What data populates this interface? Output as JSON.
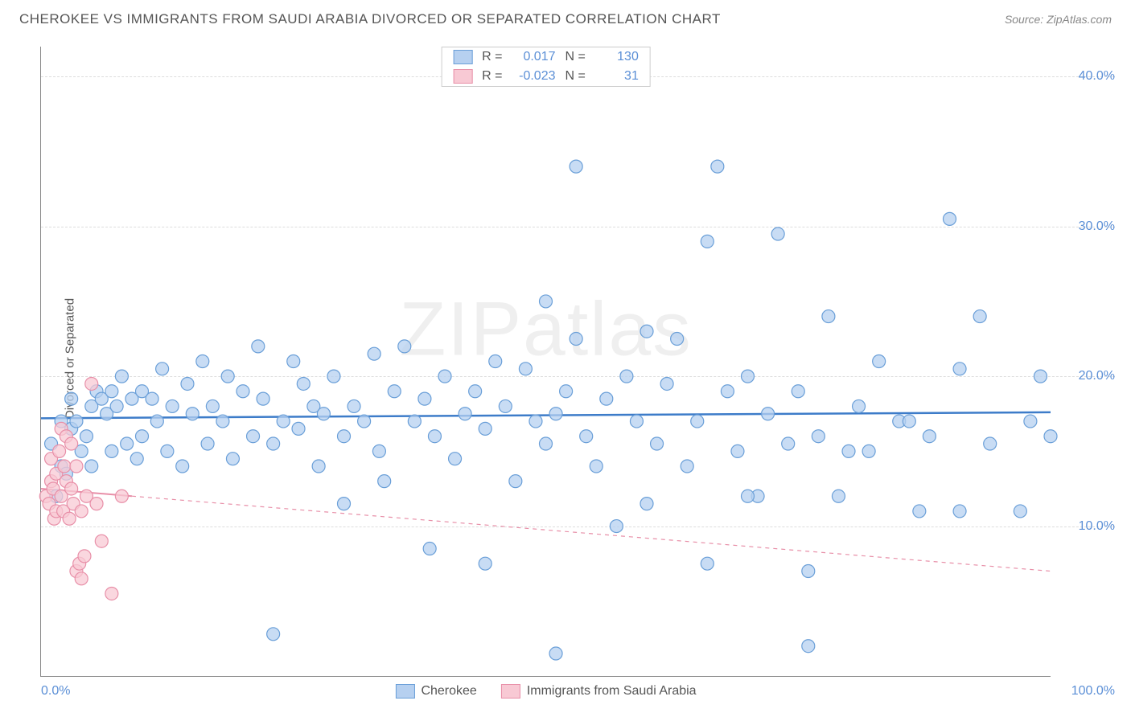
{
  "header": {
    "title": "CHEROKEE VS IMMIGRANTS FROM SAUDI ARABIA DIVORCED OR SEPARATED CORRELATION CHART",
    "source": "Source: ZipAtlas.com"
  },
  "chart": {
    "type": "scatter",
    "ylabel": "Divorced or Separated",
    "watermark": "ZIPatlas",
    "xlim": [
      0,
      100
    ],
    "ylim": [
      0,
      42
    ],
    "yticks": [
      10,
      20,
      30,
      40
    ],
    "ytick_labels": [
      "10.0%",
      "20.0%",
      "30.0%",
      "40.0%"
    ],
    "xtick_left": "0.0%",
    "xtick_right": "100.0%",
    "background": "#ffffff",
    "grid_color": "#dddddd",
    "series": [
      {
        "name": "Cherokee",
        "label": "Cherokee",
        "marker_fill": "#b6d0f0",
        "marker_stroke": "#6a9fd8",
        "marker_radius": 8,
        "marker_opacity": 0.75,
        "line_color": "#3d7cc9",
        "line_width": 2.5,
        "line_dash": "none",
        "trend": {
          "y_at_x0": 17.2,
          "y_at_x100": 17.6
        },
        "R": "0.017",
        "N": "130",
        "points": [
          [
            1,
            15.5
          ],
          [
            1.5,
            12
          ],
          [
            2,
            14
          ],
          [
            2,
            17
          ],
          [
            2.5,
            13.5
          ],
          [
            3,
            16.5
          ],
          [
            3,
            18.5
          ],
          [
            3.5,
            17
          ],
          [
            4,
            15
          ],
          [
            4.5,
            16
          ],
          [
            5,
            18
          ],
          [
            5,
            14
          ],
          [
            5.5,
            19
          ],
          [
            6,
            18.5
          ],
          [
            6.5,
            17.5
          ],
          [
            7,
            19
          ],
          [
            7,
            15
          ],
          [
            7.5,
            18
          ],
          [
            8,
            20
          ],
          [
            8.5,
            15.5
          ],
          [
            9,
            18.5
          ],
          [
            9.5,
            14.5
          ],
          [
            10,
            19
          ],
          [
            10,
            16
          ],
          [
            11,
            18.5
          ],
          [
            11.5,
            17
          ],
          [
            12,
            20.5
          ],
          [
            12.5,
            15
          ],
          [
            13,
            18
          ],
          [
            14,
            14
          ],
          [
            14.5,
            19.5
          ],
          [
            15,
            17.5
          ],
          [
            16,
            21
          ],
          [
            16.5,
            15.5
          ],
          [
            17,
            18
          ],
          [
            18,
            17
          ],
          [
            18.5,
            20
          ],
          [
            19,
            14.5
          ],
          [
            20,
            19
          ],
          [
            21,
            16
          ],
          [
            21.5,
            22
          ],
          [
            22,
            18.5
          ],
          [
            23,
            2.8
          ],
          [
            23,
            15.5
          ],
          [
            24,
            17
          ],
          [
            25,
            21
          ],
          [
            25.5,
            16.5
          ],
          [
            26,
            19.5
          ],
          [
            27,
            18
          ],
          [
            27.5,
            14
          ],
          [
            28,
            17.5
          ],
          [
            29,
            20
          ],
          [
            30,
            11.5
          ],
          [
            30,
            16
          ],
          [
            31,
            18
          ],
          [
            32,
            17
          ],
          [
            33,
            21.5
          ],
          [
            33.5,
            15
          ],
          [
            34,
            13
          ],
          [
            35,
            19
          ],
          [
            36,
            22
          ],
          [
            37,
            17
          ],
          [
            38,
            18.5
          ],
          [
            38.5,
            8.5
          ],
          [
            39,
            16
          ],
          [
            40,
            20
          ],
          [
            41,
            14.5
          ],
          [
            42,
            17.5
          ],
          [
            43,
            19
          ],
          [
            44,
            7.5
          ],
          [
            44,
            16.5
          ],
          [
            45,
            21
          ],
          [
            46,
            18
          ],
          [
            47,
            13
          ],
          [
            48,
            20.5
          ],
          [
            49,
            17
          ],
          [
            50,
            25
          ],
          [
            50,
            15.5
          ],
          [
            51,
            1.5
          ],
          [
            51,
            17.5
          ],
          [
            52,
            19
          ],
          [
            53,
            34
          ],
          [
            53,
            22.5
          ],
          [
            54,
            16
          ],
          [
            55,
            14
          ],
          [
            56,
            18.5
          ],
          [
            57,
            10
          ],
          [
            58,
            20
          ],
          [
            59,
            17
          ],
          [
            60,
            23
          ],
          [
            61,
            15.5
          ],
          [
            62,
            19.5
          ],
          [
            63,
            22.5
          ],
          [
            64,
            14
          ],
          [
            65,
            17
          ],
          [
            66,
            7.5
          ],
          [
            66,
            29
          ],
          [
            67,
            34
          ],
          [
            68,
            19
          ],
          [
            69,
            15
          ],
          [
            70,
            20
          ],
          [
            71,
            12
          ],
          [
            72,
            17.5
          ],
          [
            73,
            29.5
          ],
          [
            74,
            15.5
          ],
          [
            75,
            19
          ],
          [
            76,
            7
          ],
          [
            76,
            2
          ],
          [
            77,
            16
          ],
          [
            78,
            24
          ],
          [
            79,
            12
          ],
          [
            80,
            15
          ],
          [
            81,
            18
          ],
          [
            83,
            21
          ],
          [
            85,
            17
          ],
          [
            87,
            11
          ],
          [
            88,
            16
          ],
          [
            90,
            30.5
          ],
          [
            91,
            20.5
          ],
          [
            93,
            24
          ],
          [
            94,
            15.5
          ],
          [
            97,
            11
          ],
          [
            98,
            17
          ],
          [
            99,
            20
          ],
          [
            100,
            16
          ],
          [
            91,
            11
          ],
          [
            82,
            15
          ],
          [
            86,
            17
          ],
          [
            70,
            12
          ],
          [
            60,
            11.5
          ]
        ]
      },
      {
        "name": "Immigrants from Saudi Arabia",
        "label": "Immigrants from Saudi Arabia",
        "marker_fill": "#f8c9d4",
        "marker_stroke": "#e88fa8",
        "marker_radius": 8,
        "marker_opacity": 0.75,
        "line_color": "#e88fa8",
        "line_width": 1.2,
        "line_dash": "5,5",
        "trend": {
          "y_at_x0": 12.5,
          "y_at_x100": 7.0
        },
        "R": "-0.023",
        "N": "31",
        "solid_segment_x": 9,
        "points": [
          [
            0.5,
            12
          ],
          [
            0.8,
            11.5
          ],
          [
            1,
            13
          ],
          [
            1,
            14.5
          ],
          [
            1.2,
            12.5
          ],
          [
            1.3,
            10.5
          ],
          [
            1.5,
            13.5
          ],
          [
            1.5,
            11
          ],
          [
            1.8,
            15
          ],
          [
            2,
            12
          ],
          [
            2,
            16.5
          ],
          [
            2.2,
            11
          ],
          [
            2.3,
            14
          ],
          [
            2.5,
            16
          ],
          [
            2.5,
            13
          ],
          [
            2.8,
            10.5
          ],
          [
            3,
            12.5
          ],
          [
            3,
            15.5
          ],
          [
            3.2,
            11.5
          ],
          [
            3.5,
            14
          ],
          [
            3.5,
            7
          ],
          [
            3.8,
            7.5
          ],
          [
            4,
            11
          ],
          [
            4,
            6.5
          ],
          [
            4.3,
            8
          ],
          [
            4.5,
            12
          ],
          [
            5,
            19.5
          ],
          [
            5.5,
            11.5
          ],
          [
            6,
            9
          ],
          [
            7,
            5.5
          ],
          [
            8,
            12
          ]
        ]
      }
    ],
    "legend_top": [
      {
        "swatch_fill": "#b6d0f0",
        "swatch_stroke": "#6a9fd8",
        "R": "0.017",
        "N": "130"
      },
      {
        "swatch_fill": "#f8c9d4",
        "swatch_stroke": "#e88fa8",
        "R": "-0.023",
        "N": "31"
      }
    ],
    "legend_bottom": [
      {
        "swatch_fill": "#b6d0f0",
        "swatch_stroke": "#6a9fd8",
        "label": "Cherokee"
      },
      {
        "swatch_fill": "#f8c9d4",
        "swatch_stroke": "#e88fa8",
        "label": "Immigrants from Saudi Arabia"
      }
    ]
  }
}
